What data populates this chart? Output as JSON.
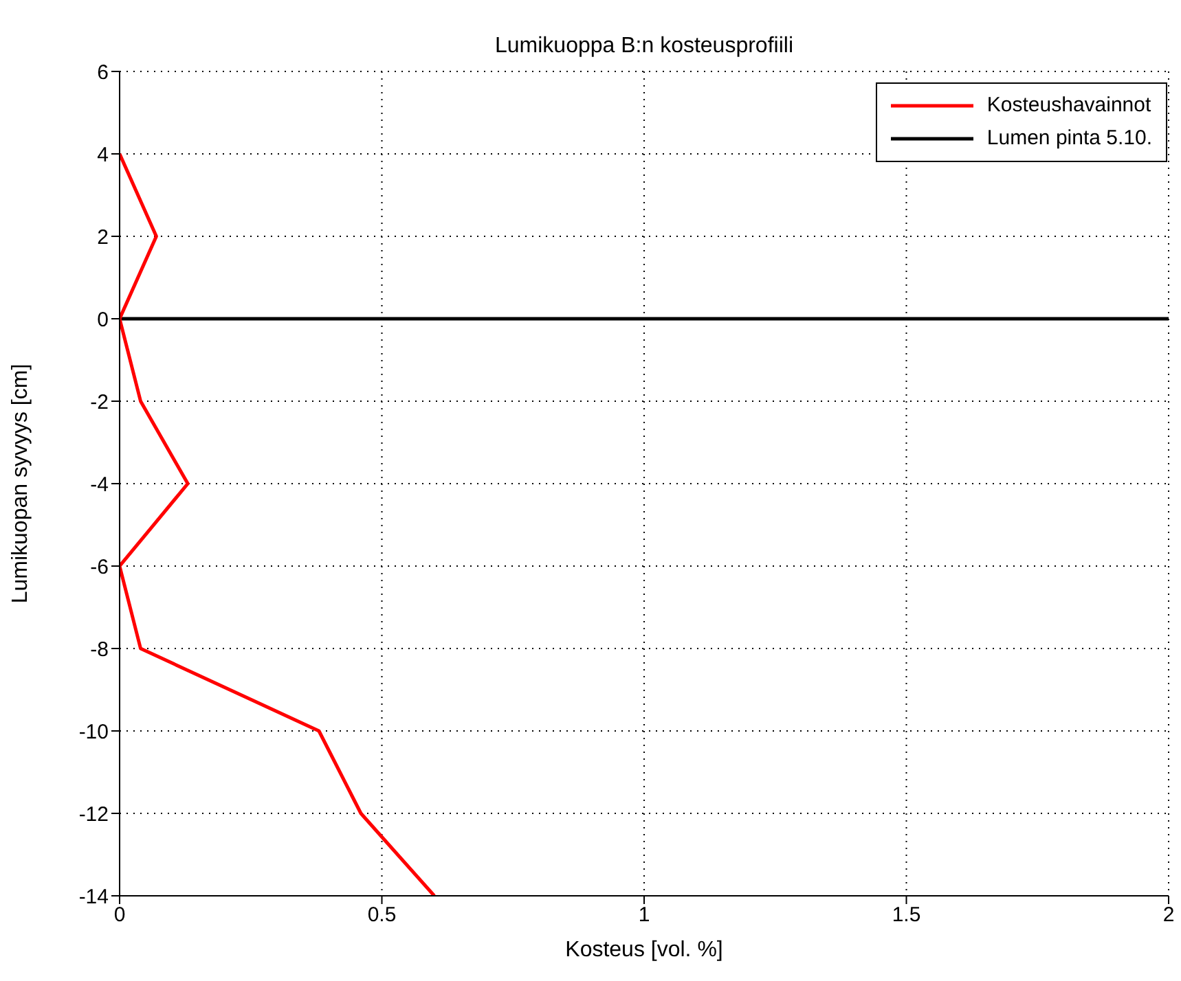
{
  "chart_data": {
    "type": "line",
    "title": "Lumikuoppa B:n kosteusprofiili",
    "xlabel": "Kosteus [vol. %]",
    "ylabel": "Lumikuopan syvyys [cm]",
    "series": [
      {
        "name": "Kosteushavainnot",
        "color": "#ff0000",
        "x": [
          0,
          0.07,
          0,
          0.04,
          0.13,
          0,
          0.04,
          0.38,
          0.46,
          0.6
        ],
        "values": [
          4,
          2,
          0,
          -2,
          -4,
          -6,
          -8,
          -10,
          -12,
          -14
        ]
      }
    ],
    "ref_lines": [
      {
        "axis": "y",
        "value": 0,
        "label": "Lumen pinta 5.10.",
        "color": "#000000",
        "line_style": "solid"
      }
    ],
    "xlim": [
      0,
      2
    ],
    "xticks": [
      0,
      0.5,
      1,
      1.5,
      2
    ],
    "ylim": [
      -14,
      6
    ],
    "yticks": [
      -14,
      -12,
      -10,
      -8,
      -6,
      -4,
      -2,
      0,
      2,
      4,
      6
    ],
    "grid": true,
    "legend": "top right",
    "marker": "none",
    "line_style": "solid"
  }
}
